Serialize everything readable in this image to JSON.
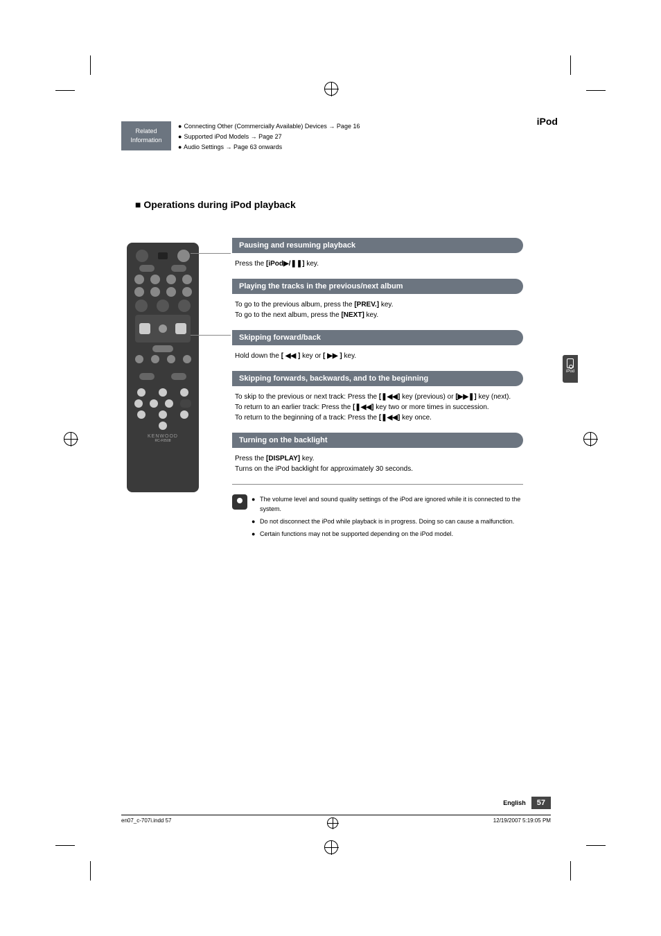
{
  "header": {
    "related_box_line1": "Related",
    "related_box_line2": "Information",
    "ipod_label": "iPod",
    "related_items": [
      "Connecting Other (Commercially Available) Devices → Page 16",
      "Supported iPod Models → Page 27",
      "Audio Settings → Page 63 onwards"
    ]
  },
  "section_title": "Operations during iPod playback",
  "sections": [
    {
      "title": "Pausing and resuming playback",
      "body_html": "Press the <b>[iPod▶/❚❚]</b> key."
    },
    {
      "title": "Playing the tracks in the previous/next album",
      "body_html": "To go to the previous album, press the <b>[PREV.]</b> key.<br>To go to the next album, press the <b>[NEXT]</b> key."
    },
    {
      "title": "Skipping forward/back",
      "body_html": "Hold down the <b>[ ◀◀ ]</b> key or <b>[ ▶▶ ]</b> key."
    },
    {
      "title": "Skipping forwards, backwards, and to the beginning",
      "body_html": "To skip to the previous or next track: Press the <b>[❚◀◀]</b> key (previous) or <b>[▶▶❚]</b> key (next).<br>To return to an earlier track: Press the <b>[❚◀◀]</b> key two or more times in succession.<br>To return to the beginning of a track: Press the <b>[❚◀◀]</b> key once."
    },
    {
      "title": "Turning on the backlight",
      "body_html": "Press the <b>[DISPLAY]</b> key.<br>Turns on the iPod backlight for approximately 30 seconds."
    }
  ],
  "tips": [
    "The volume level and sound quality settings of the iPod are ignored while it is connected to the system.",
    "Do not disconnect the iPod while playback is in progress. Doing so can cause a malfunction.",
    "Certain functions may not be supported depending on the iPod model."
  ],
  "side_tab": "iPod",
  "remote_brand": "KENWOOD",
  "remote_model": "RC-F0508",
  "footer": {
    "language": "English",
    "page_number": "57"
  },
  "print_info": {
    "file": "en07_c-707i.indd   57",
    "timestamp": "12/19/2007   5:19:05 PM"
  },
  "colors": {
    "header_bar": "#6c7580",
    "remote_body": "#3a3a3a",
    "page_badge": "#444444"
  }
}
